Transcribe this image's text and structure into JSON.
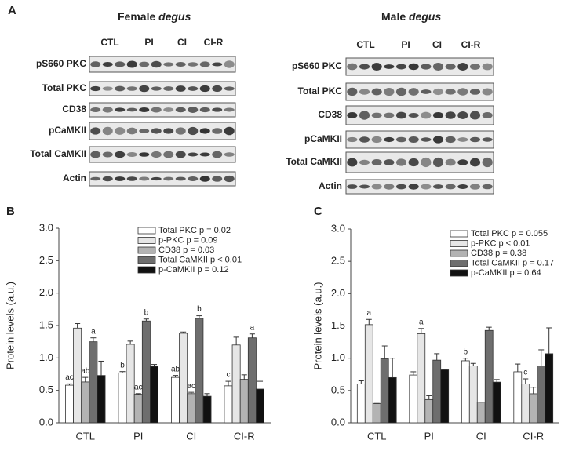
{
  "panels": {
    "A": "A",
    "B": "B",
    "C": "C"
  },
  "blots": [
    {
      "sex": "Female",
      "species": "degus",
      "groups": [
        "CTL",
        "PI",
        "CI",
        "CI-R"
      ],
      "rows": [
        "pS660 PKC",
        "Total PKC",
        "CD38",
        "pCaMKII",
        "Total CaMKII",
        "Actin"
      ]
    },
    {
      "sex": "Male",
      "species": "degus",
      "groups": [
        "CTL",
        "PI",
        "CI",
        "CI-R"
      ],
      "rows": [
        "pS660 PKC",
        "Total PKC",
        "CD38",
        "pCaMKII",
        "Total CaMKII",
        "Actin"
      ]
    }
  ],
  "chart_data": [
    {
      "type": "bar",
      "ylabel": "Protein levels (a.u.)",
      "categories": [
        "CTL",
        "PI",
        "CI",
        "CI-R"
      ],
      "ylim": [
        0,
        3
      ],
      "yticks": [
        {
          "value": 0,
          "label": "0.0"
        },
        {
          "value": 0.5,
          "label": "0.5"
        },
        {
          "value": 1,
          "label": "1.0"
        },
        {
          "value": 1.5,
          "label": "1.5"
        },
        {
          "value": 2,
          "label": "2.0"
        },
        {
          "value": 2.5,
          "label": "2.5"
        },
        {
          "value": 3,
          "label": "3.0"
        }
      ],
      "series": [
        {
          "name": "Total PKC p = 0.02",
          "color": "#ffffff",
          "values": [
            0.58,
            0.77,
            0.7,
            0.57
          ],
          "errors": [
            0.02,
            0.02,
            0.03,
            0.07
          ],
          "annotations": [
            "ac",
            "b",
            "ab",
            "c"
          ]
        },
        {
          "name": "p-PKC p = 0.09",
          "color": "#e6e6e6",
          "values": [
            1.46,
            1.21,
            1.38,
            1.2
          ],
          "errors": [
            0.07,
            0.05,
            0.02,
            0.12
          ]
        },
        {
          "name": "CD38 p = 0.03",
          "color": "#b3b3b3",
          "values": [
            0.63,
            0.44,
            0.45,
            0.67
          ],
          "errors": [
            0.07,
            0.01,
            0.02,
            0.07
          ],
          "annotations": [
            "ab",
            "ac",
            "ac",
            null
          ]
        },
        {
          "name": "Total CaMKII p < 0.01",
          "color": "#6e6e6e",
          "values": [
            1.25,
            1.57,
            1.61,
            1.31
          ],
          "errors": [
            0.06,
            0.03,
            0.04,
            0.06
          ],
          "annotations": [
            "a",
            "b",
            "b",
            "a"
          ]
        },
        {
          "name": "p-CaMKII p = 0.12",
          "color": "#111111",
          "values": [
            0.73,
            0.87,
            0.41,
            0.52
          ],
          "errors": [
            0.22,
            0.03,
            0.04,
            0.12
          ]
        }
      ]
    },
    {
      "type": "bar",
      "ylabel": "Protein levels (a.u.)",
      "categories": [
        "CTL",
        "PI",
        "CI",
        "CI-R"
      ],
      "ylim": [
        0,
        3
      ],
      "yticks": [
        {
          "value": 0,
          "label": "0.0"
        },
        {
          "value": 0.5,
          "label": "0.5"
        },
        {
          "value": 1,
          "label": "1.0"
        },
        {
          "value": 1.5,
          "label": "1.5"
        },
        {
          "value": 2,
          "label": "2.0"
        },
        {
          "value": 2.5,
          "label": "2.5"
        },
        {
          "value": 3,
          "label": "3.0"
        }
      ],
      "series": [
        {
          "name": "Total PKC p = 0.055",
          "color": "#ffffff",
          "values": [
            0.6,
            0.74,
            0.96,
            0.79
          ],
          "errors": [
            0.05,
            0.05,
            0.04,
            0.12
          ],
          "annotations": [
            null,
            null,
            "b",
            null
          ]
        },
        {
          "name": "p-PKC p < 0.01",
          "color": "#e6e6e6",
          "values": [
            1.52,
            1.38,
            0.88,
            0.6
          ],
          "errors": [
            0.08,
            0.08,
            0.04,
            0.08
          ],
          "annotations": [
            "a",
            "a",
            null,
            "c"
          ]
        },
        {
          "name": "CD38 p = 0.38",
          "color": "#b3b3b3",
          "values": [
            0.3,
            0.36,
            0.32,
            0.45
          ],
          "errors": [
            0.0,
            0.06,
            0.0,
            0.1
          ]
        },
        {
          "name": "Total CaMKII p = 0.17",
          "color": "#6e6e6e",
          "values": [
            0.99,
            0.97,
            1.43,
            0.88
          ],
          "errors": [
            0.2,
            0.1,
            0.05,
            0.25
          ]
        },
        {
          "name": "p-CaMKII p = 0.64",
          "color": "#111111",
          "values": [
            0.7,
            0.82,
            0.63,
            1.07
          ],
          "errors": [
            0.3,
            0.0,
            0.04,
            0.4
          ]
        }
      ]
    }
  ]
}
